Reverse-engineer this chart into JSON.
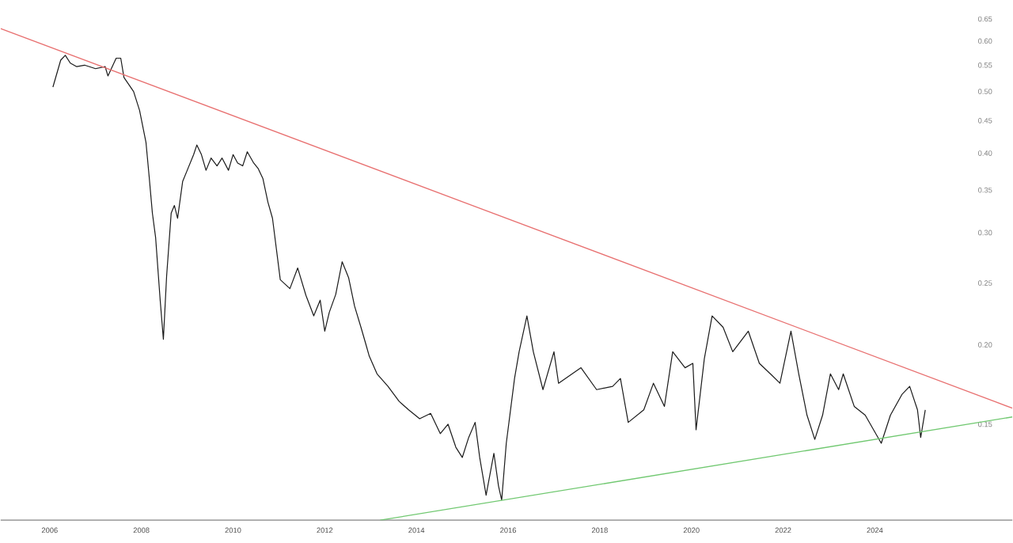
{
  "chart_data": {
    "type": "line",
    "log": "y",
    "xlim": [
      2004.93,
      2027.0
    ],
    "ylim": [
      0.106,
      0.65
    ],
    "xticks": [
      2006,
      2008,
      2010,
      2012,
      2014,
      2016,
      2018,
      2020,
      2022,
      2024
    ],
    "yticks": [
      0.15,
      {
        "value": 0.2,
        "label": "0.20"
      },
      0.25,
      {
        "value": 0.3,
        "label": "0.30"
      },
      0.35,
      {
        "value": 0.4,
        "label": "0.40"
      },
      0.45,
      {
        "value": 0.5,
        "label": "0.50"
      },
      0.55,
      {
        "value": 0.6,
        "label": "0.60"
      },
      0.65
    ],
    "series": [
      {
        "color": "#1a1a1a",
        "x": [
          2006.07,
          2006.17,
          2006.24,
          2006.34,
          2006.45,
          2006.59,
          2006.76,
          2007.0,
          2007.21,
          2007.27,
          2007.45,
          2007.55,
          2007.62,
          2007.83,
          2007.96,
          2008.1,
          2008.17,
          2008.24,
          2008.31,
          2008.41,
          2008.48,
          2008.55,
          2008.65,
          2008.72,
          2008.79,
          2008.9,
          2009.0,
          2009.14,
          2009.21,
          2009.31,
          2009.41,
          2009.52,
          2009.65,
          2009.76,
          2009.9,
          2010.0,
          2010.1,
          2010.21,
          2010.31,
          2010.45,
          2010.55,
          2010.65,
          2010.76,
          2010.86,
          2011.03,
          2011.24,
          2011.41,
          2011.59,
          2011.76,
          2011.9,
          2012.0,
          2012.1,
          2012.24,
          2012.38,
          2012.52,
          2012.65,
          2012.79,
          2012.9,
          2012.97,
          2013.14,
          2013.38,
          2013.62,
          2013.83,
          2014.07,
          2014.31,
          2014.52,
          2014.69,
          2014.86,
          2015.0,
          2015.14,
          2015.28,
          2015.38,
          2015.52,
          2015.69,
          2015.79,
          2015.86,
          2015.96,
          2016.14,
          2016.24,
          2016.41,
          2016.55,
          2016.76,
          2017.0,
          2017.1,
          2017.59,
          2017.93,
          2018.28,
          2018.45,
          2018.62,
          2018.96,
          2019.17,
          2019.41,
          2019.59,
          2019.86,
          2020.03,
          2020.1,
          2020.28,
          2020.45,
          2020.69,
          2020.9,
          2021.24,
          2021.48,
          2021.72,
          2021.93,
          2022.17,
          2022.34,
          2022.52,
          2022.69,
          2022.86,
          2023.03,
          2023.21,
          2023.31,
          2023.55,
          2023.79,
          2024.14,
          2024.34,
          2024.59,
          2024.76,
          2024.93,
          2025.0,
          2025.1
        ],
        "values": [
          0.508,
          0.538,
          0.56,
          0.57,
          0.554,
          0.547,
          0.55,
          0.543,
          0.547,
          0.529,
          0.564,
          0.564,
          0.526,
          0.5,
          0.467,
          0.416,
          0.367,
          0.322,
          0.295,
          0.235,
          0.204,
          0.256,
          0.322,
          0.331,
          0.316,
          0.361,
          0.376,
          0.398,
          0.412,
          0.398,
          0.376,
          0.393,
          0.382,
          0.393,
          0.376,
          0.398,
          0.386,
          0.382,
          0.402,
          0.386,
          0.378,
          0.365,
          0.335,
          0.316,
          0.253,
          0.245,
          0.264,
          0.239,
          0.222,
          0.235,
          0.21,
          0.225,
          0.24,
          0.27,
          0.255,
          0.23,
          0.213,
          0.2,
          0.192,
          0.18,
          0.172,
          0.163,
          0.158,
          0.153,
          0.156,
          0.145,
          0.15,
          0.138,
          0.133,
          0.143,
          0.151,
          0.133,
          0.116,
          0.135,
          0.12,
          0.114,
          0.14,
          0.177,
          0.195,
          0.222,
          0.195,
          0.17,
          0.195,
          0.174,
          0.184,
          0.17,
          0.172,
          0.177,
          0.151,
          0.158,
          0.174,
          0.16,
          0.195,
          0.184,
          0.187,
          0.147,
          0.19,
          0.222,
          0.213,
          0.195,
          0.21,
          0.187,
          0.18,
          0.174,
          0.21,
          0.18,
          0.155,
          0.142,
          0.155,
          0.18,
          0.17,
          0.18,
          0.16,
          0.155,
          0.14,
          0.155,
          0.167,
          0.172,
          0.158,
          0.143,
          0.158
        ]
      },
      {
        "color": "#e87070",
        "x": [
          2004.93,
          2027.0
        ],
        "values": [
          0.628,
          0.159
        ]
      },
      {
        "color": "#70c870",
        "x": [
          2013.21,
          2027.0
        ],
        "values": [
          0.106,
          0.154
        ]
      }
    ]
  }
}
